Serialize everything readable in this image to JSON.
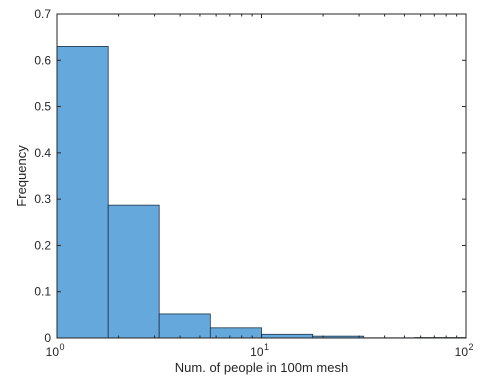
{
  "chart_data": {
    "type": "bar",
    "title": "",
    "xlabel": "Num. of people in 100m mesh",
    "ylabel": "Frequency",
    "x_scale": "log",
    "xlim": [
      1,
      100
    ],
    "ylim": [
      0,
      0.7
    ],
    "grid": false,
    "bar_color": "#65a9dc",
    "bar_edge_color": "#1f3347",
    "axis_color": "#262626",
    "bins": [
      {
        "x_start": 1.0,
        "x_end": 1.78,
        "value": 0.63
      },
      {
        "x_start": 1.78,
        "x_end": 3.16,
        "value": 0.287
      },
      {
        "x_start": 3.16,
        "x_end": 5.62,
        "value": 0.052
      },
      {
        "x_start": 5.62,
        "x_end": 10.0,
        "value": 0.022
      },
      {
        "x_start": 10.0,
        "x_end": 17.8,
        "value": 0.008
      },
      {
        "x_start": 17.8,
        "x_end": 31.6,
        "value": 0.004
      },
      {
        "x_start": 31.6,
        "x_end": 56.2,
        "value": 0.0005
      },
      {
        "x_start": 56.2,
        "x_end": 100.0,
        "value": 0.001
      }
    ],
    "y_ticks": [
      {
        "value": 0,
        "label": "0"
      },
      {
        "value": 0.1,
        "label": "0.1"
      },
      {
        "value": 0.2,
        "label": "0.2"
      },
      {
        "value": 0.3,
        "label": "0.3"
      },
      {
        "value": 0.4,
        "label": "0.4"
      },
      {
        "value": 0.5,
        "label": "0.5"
      },
      {
        "value": 0.6,
        "label": "0.6"
      },
      {
        "value": 0.7,
        "label": "0.7"
      }
    ],
    "x_major_ticks": [
      {
        "value": 1,
        "base": "10",
        "exp": "0"
      },
      {
        "value": 10,
        "base": "10",
        "exp": "1"
      },
      {
        "value": 100,
        "base": "10",
        "exp": "2"
      }
    ]
  }
}
